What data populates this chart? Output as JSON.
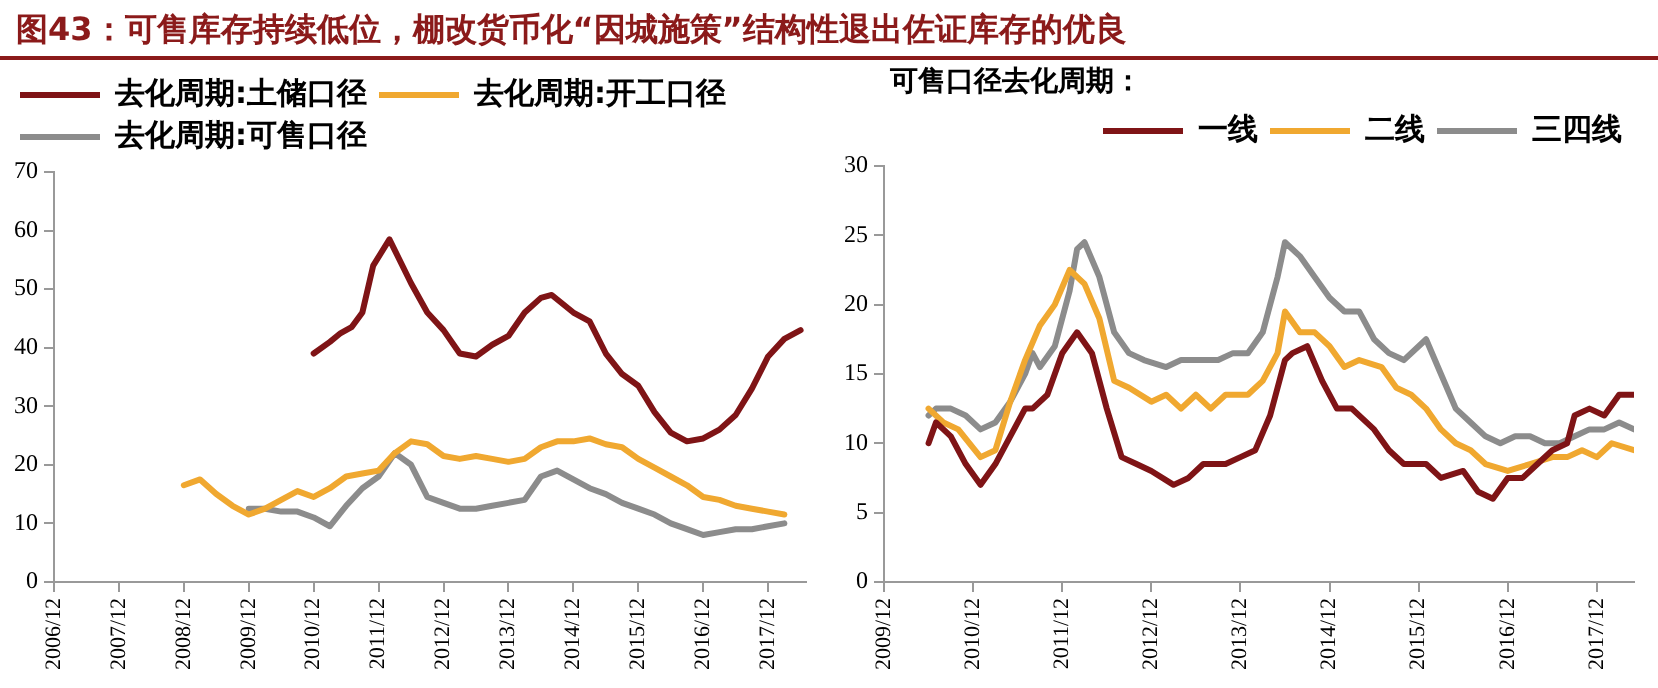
{
  "chart_data": [
    {
      "type": "line",
      "title": "图43：可售库存持续低位，棚改货币化“因城施策”结构性退出佐证库存的优良",
      "grid": false,
      "legend": "top",
      "marker": "none",
      "line_style": "solid",
      "xlim": [
        "2006-12",
        "2018-07"
      ],
      "xticks": [
        {
          "value": "2006-12",
          "label": "2006/12"
        },
        {
          "value": "2007-12",
          "label": "2007/12"
        },
        {
          "value": "2008-12",
          "label": "2008/12"
        },
        {
          "value": "2009-12",
          "label": "2009/12"
        },
        {
          "value": "2010-12",
          "label": "2010/12"
        },
        {
          "value": "2011-12",
          "label": "2011/12"
        },
        {
          "value": "2012-12",
          "label": "2012/12"
        },
        {
          "value": "2013-12",
          "label": "2013/12"
        },
        {
          "value": "2014-12",
          "label": "2014/12"
        },
        {
          "value": "2015-12",
          "label": "2015/12"
        },
        {
          "value": "2016-12",
          "label": "2016/12"
        },
        {
          "value": "2017-12",
          "label": "2017/12"
        }
      ],
      "ylim": [
        0,
        70
      ],
      "yticks": [
        0,
        10,
        20,
        30,
        40,
        50,
        60,
        70
      ],
      "series": [
        {
          "name": "去化周期:土储口径",
          "color": "#7f1416",
          "x": [
            "2010-12",
            "2011-03",
            "2011-05",
            "2011-07",
            "2011-09",
            "2011-11",
            "2012-02",
            "2012-06",
            "2012-09",
            "2012-12",
            "2013-03",
            "2013-06",
            "2013-09",
            "2013-12",
            "2014-03",
            "2014-06",
            "2014-08",
            "2014-12",
            "2015-03",
            "2015-06",
            "2015-09",
            "2015-12",
            "2016-03",
            "2016-06",
            "2016-09",
            "2016-12",
            "2017-03",
            "2017-06",
            "2017-09",
            "2017-12",
            "2018-03",
            "2018-06"
          ],
          "values": [
            39,
            41,
            42.5,
            43.5,
            46,
            54,
            58.5,
            51,
            46,
            43,
            39,
            38.5,
            40.5,
            42,
            46,
            48.5,
            49,
            46,
            44.5,
            39,
            35.5,
            33.5,
            29,
            25.5,
            24,
            24.5,
            26,
            28.5,
            33,
            38.5,
            41.5,
            43
          ]
        },
        {
          "name": "去化周期:开工口径",
          "color": "#f0a830",
          "x": [
            "2008-12",
            "2009-03",
            "2009-06",
            "2009-09",
            "2009-12",
            "2010-03",
            "2010-06",
            "2010-09",
            "2010-12",
            "2011-03",
            "2011-06",
            "2011-09",
            "2011-12",
            "2012-03",
            "2012-06",
            "2012-09",
            "2012-12",
            "2013-03",
            "2013-06",
            "2013-09",
            "2013-12",
            "2014-03",
            "2014-06",
            "2014-09",
            "2014-12",
            "2015-03",
            "2015-06",
            "2015-09",
            "2015-12",
            "2016-03",
            "2016-06",
            "2016-09",
            "2016-12",
            "2017-03",
            "2017-06",
            "2017-09",
            "2017-12",
            "2018-03"
          ],
          "values": [
            16.5,
            17.5,
            15,
            13,
            11.5,
            12.5,
            14,
            15.5,
            14.5,
            16,
            18,
            18.5,
            19,
            22,
            24,
            23.5,
            21.5,
            21,
            21.5,
            21,
            20.5,
            21,
            23,
            24,
            24,
            24.5,
            23.5,
            23,
            21,
            19.5,
            18,
            16.5,
            14.5,
            14,
            13,
            12.5,
            12,
            11.5
          ]
        },
        {
          "name": "去化周期:可售口径",
          "color": "#8c8c8c",
          "x": [
            "2009-12",
            "2010-03",
            "2010-06",
            "2010-09",
            "2010-12",
            "2011-03",
            "2011-06",
            "2011-09",
            "2011-12",
            "2012-03",
            "2012-06",
            "2012-09",
            "2012-12",
            "2013-03",
            "2013-06",
            "2013-09",
            "2013-12",
            "2014-03",
            "2014-06",
            "2014-09",
            "2014-12",
            "2015-03",
            "2015-06",
            "2015-09",
            "2015-12",
            "2016-03",
            "2016-06",
            "2016-09",
            "2016-12",
            "2017-03",
            "2017-06",
            "2017-09",
            "2017-12",
            "2018-03"
          ],
          "values": [
            12.5,
            12.5,
            12,
            12,
            11,
            9.5,
            13,
            16,
            18,
            22,
            20,
            14.5,
            13.5,
            12.5,
            12.5,
            13,
            13.5,
            14,
            18,
            19,
            17.5,
            16,
            15,
            13.5,
            12.5,
            11.5,
            10,
            9,
            8,
            8.5,
            9,
            9,
            9.5,
            10
          ]
        }
      ]
    },
    {
      "type": "line",
      "legend_title": "可售口径去化周期：",
      "grid": false,
      "legend": "top right",
      "marker": "none",
      "line_style": "solid",
      "xlim": [
        "2009-12",
        "2018-05"
      ],
      "xticks": [
        {
          "value": "2009-12",
          "label": "2009/12"
        },
        {
          "value": "2010-12",
          "label": "2010/12"
        },
        {
          "value": "2011-12",
          "label": "2011/12"
        },
        {
          "value": "2012-12",
          "label": "2012/12"
        },
        {
          "value": "2013-12",
          "label": "2013/12"
        },
        {
          "value": "2014-12",
          "label": "2014/12"
        },
        {
          "value": "2015-12",
          "label": "2015/12"
        },
        {
          "value": "2016-12",
          "label": "2016/12"
        },
        {
          "value": "2017-12",
          "label": "2017/12"
        }
      ],
      "ylim": [
        0,
        30
      ],
      "yticks": [
        0,
        5,
        10,
        15,
        20,
        25,
        30
      ],
      "series": [
        {
          "name": "一线",
          "color": "#7f1416",
          "x": [
            "2010-06",
            "2010-07",
            "2010-08",
            "2010-09",
            "2010-11",
            "2011-01",
            "2011-03",
            "2011-05",
            "2011-07",
            "2011-08",
            "2011-10",
            "2011-12",
            "2012-02",
            "2012-04",
            "2012-06",
            "2012-08",
            "2012-10",
            "2012-12",
            "2013-03",
            "2013-05",
            "2013-07",
            "2013-10",
            "2013-12",
            "2014-02",
            "2014-04",
            "2014-06",
            "2014-07",
            "2014-09",
            "2014-11",
            "2015-01",
            "2015-03",
            "2015-06",
            "2015-08",
            "2015-10",
            "2016-01",
            "2016-03",
            "2016-06",
            "2016-08",
            "2016-10",
            "2016-12",
            "2017-02",
            "2017-04",
            "2017-06",
            "2017-08",
            "2017-09",
            "2017-11",
            "2018-01",
            "2018-03",
            "2018-05"
          ],
          "values": [
            10,
            11.5,
            11,
            10.5,
            8.5,
            7,
            8.5,
            10.5,
            12.5,
            12.5,
            13.5,
            16.5,
            18,
            16.5,
            12.5,
            9,
            8.5,
            8,
            7,
            7.5,
            8.5,
            8.5,
            9,
            9.5,
            12,
            16,
            16.5,
            17,
            14.5,
            12.5,
            12.5,
            11,
            9.5,
            8.5,
            8.5,
            7.5,
            8,
            6.5,
            6,
            7.5,
            7.5,
            8.5,
            9.5,
            10,
            12,
            12.5,
            12,
            13.5,
            13.5
          ]
        },
        {
          "name": "二线",
          "color": "#f0a830",
          "x": [
            "2010-06",
            "2010-08",
            "2010-10",
            "2011-01",
            "2011-03",
            "2011-05",
            "2011-07",
            "2011-09",
            "2011-11",
            "2012-01",
            "2012-03",
            "2012-05",
            "2012-07",
            "2012-09",
            "2012-12",
            "2013-02",
            "2013-04",
            "2013-06",
            "2013-08",
            "2013-10",
            "2014-01",
            "2014-03",
            "2014-05",
            "2014-06",
            "2014-08",
            "2014-10",
            "2014-12",
            "2015-02",
            "2015-04",
            "2015-07",
            "2015-09",
            "2015-11",
            "2016-01",
            "2016-03",
            "2016-05",
            "2016-07",
            "2016-09",
            "2016-12",
            "2017-03",
            "2017-06",
            "2017-08",
            "2017-10",
            "2017-12",
            "2018-02",
            "2018-05"
          ],
          "values": [
            12.5,
            11.5,
            11,
            9,
            9.5,
            13,
            16,
            18.5,
            20,
            22.5,
            21.5,
            19,
            14.5,
            14,
            13,
            13.5,
            12.5,
            13.5,
            12.5,
            13.5,
            13.5,
            14.5,
            16.5,
            19.5,
            18,
            18,
            17,
            15.5,
            16,
            15.5,
            14,
            13.5,
            12.5,
            11,
            10,
            9.5,
            8.5,
            8,
            8.5,
            9,
            9,
            9.5,
            9,
            10,
            9.5
          ]
        },
        {
          "name": "三四线",
          "color": "#8c8c8c",
          "x": [
            "2010-06",
            "2010-07",
            "2010-09",
            "2010-11",
            "2011-01",
            "2011-03",
            "2011-05",
            "2011-07",
            "2011-08",
            "2011-09",
            "2011-11",
            "2012-01",
            "2012-02",
            "2012-03",
            "2012-05",
            "2012-07",
            "2012-09",
            "2012-11",
            "2013-02",
            "2013-04",
            "2013-07",
            "2013-09",
            "2013-11",
            "2014-01",
            "2014-03",
            "2014-05",
            "2014-06",
            "2014-08",
            "2014-10",
            "2014-12",
            "2015-02",
            "2015-04",
            "2015-06",
            "2015-08",
            "2015-10",
            "2015-12",
            "2016-01",
            "2016-03",
            "2016-05",
            "2016-07",
            "2016-09",
            "2016-11",
            "2017-01",
            "2017-03",
            "2017-05",
            "2017-07",
            "2017-09",
            "2017-11",
            "2018-01",
            "2018-03",
            "2018-05"
          ],
          "values": [
            12,
            12.5,
            12.5,
            12,
            11,
            11.5,
            13,
            15,
            16.5,
            15.5,
            17,
            21,
            24,
            24.5,
            22,
            18,
            16.5,
            16,
            15.5,
            16,
            16,
            16,
            16.5,
            16.5,
            18,
            22,
            24.5,
            23.5,
            22,
            20.5,
            19.5,
            19.5,
            17.5,
            16.5,
            16,
            17,
            17.5,
            15,
            12.5,
            11.5,
            10.5,
            10,
            10.5,
            10.5,
            10,
            10,
            10.5,
            11,
            11,
            11.5,
            11
          ]
        }
      ]
    }
  ]
}
